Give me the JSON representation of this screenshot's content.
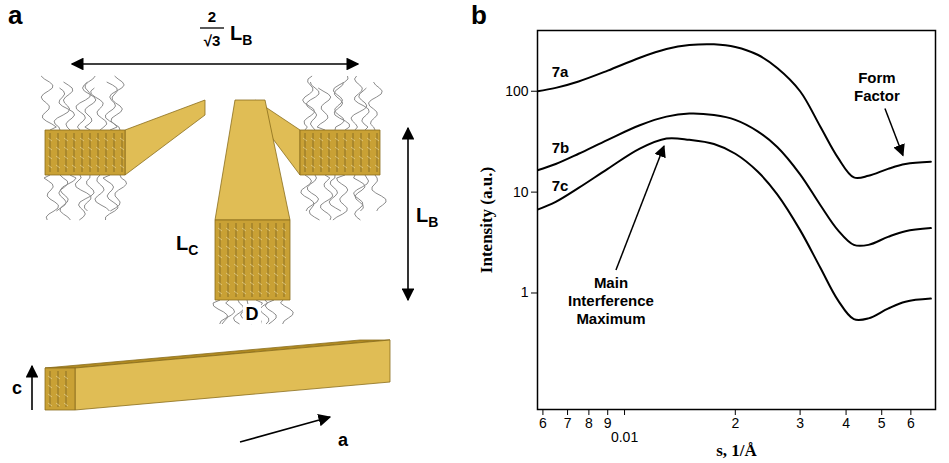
{
  "diagram": {
    "panel_label": "a",
    "spacing_label": {
      "numerator": "2",
      "denominator": "√3",
      "symbol": "L",
      "subscript": "B"
    },
    "height_label": {
      "symbol": "L",
      "subscript": "B"
    },
    "length_label": {
      "symbol": "L",
      "subscript": "C"
    },
    "width_label": "D",
    "axis_labels": [
      "c",
      "a"
    ]
  },
  "chart_data": {
    "panel_label": "b",
    "type": "line",
    "log": true,
    "grid": false,
    "xlabel": "s, 1/Å",
    "ylabel": "Intensity (a.u.)",
    "xlim": [
      0.0058,
      0.07
    ],
    "ylim": [
      0.07,
      400
    ],
    "xticks": [
      {
        "value": 0.006,
        "label": "6"
      },
      {
        "value": 0.007,
        "label": "7"
      },
      {
        "value": 0.008,
        "label": "8"
      },
      {
        "value": 0.009,
        "label": "9"
      },
      0.01,
      {
        "value": 0.02,
        "label": "2"
      },
      {
        "value": 0.03,
        "label": "3"
      },
      {
        "value": 0.04,
        "label": "4"
      },
      {
        "value": 0.05,
        "label": "5"
      },
      {
        "value": 0.06,
        "label": "6"
      }
    ],
    "yticks": [
      1,
      10,
      100
    ],
    "x": [
      0.0058,
      0.0065,
      0.0075,
      0.009,
      0.011,
      0.013,
      0.015,
      0.0175,
      0.02,
      0.023,
      0.026,
      0.03,
      0.034,
      0.038,
      0.042,
      0.046,
      0.052,
      0.058,
      0.068
    ],
    "series": [
      {
        "name": "7a",
        "color": "#000000",
        "values": [
          100,
          108,
          125,
          160,
          215,
          262,
          287,
          292,
          275,
          230,
          170,
          100,
          45,
          22,
          14,
          14.5,
          17,
          19,
          20
        ]
      },
      {
        "name": "7b",
        "color": "#000000",
        "values": [
          16.5,
          19,
          24,
          33,
          46,
          56,
          60,
          58,
          52,
          40,
          28,
          15,
          7.5,
          4.2,
          3.0,
          3.0,
          3.6,
          4.1,
          4.4
        ]
      },
      {
        "name": "7c",
        "color": "#000000",
        "values": [
          6.7,
          8,
          11,
          17,
          27,
          34,
          33,
          30,
          24,
          16,
          9.5,
          4.2,
          1.8,
          0.85,
          0.55,
          0.56,
          0.7,
          0.82,
          0.88
        ]
      }
    ],
    "annotations": [
      {
        "text": "Main Interference Maximum",
        "series": "7c",
        "x": 0.013
      },
      {
        "text": "Form Factor",
        "series": "7a",
        "x": 0.058
      }
    ]
  }
}
